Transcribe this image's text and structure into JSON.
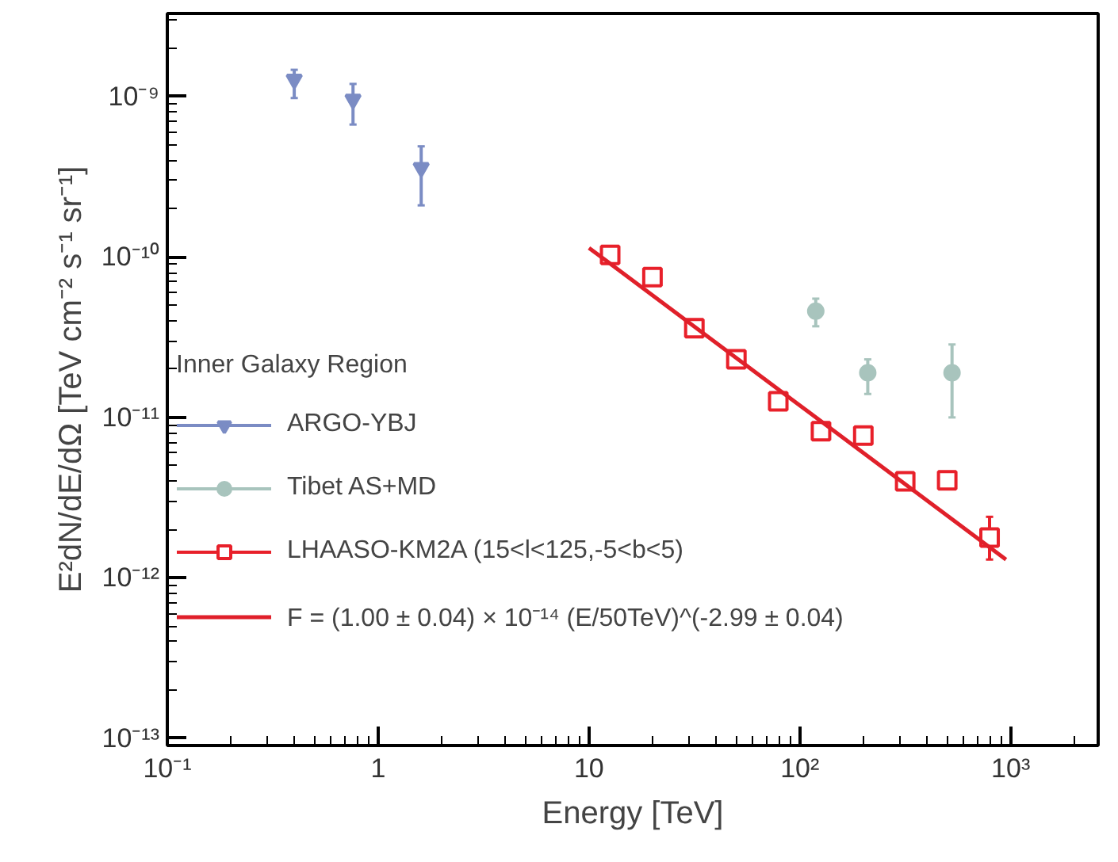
{
  "chart_data": {
    "type": "scatter",
    "xlabel": "Energy [TeV]",
    "ylabel": "E²dN/dE/dΩ [TeV cm⁻² s⁻¹ sr⁻¹]",
    "legend_title": "Inner Galaxy Region",
    "log": "xy",
    "grid": false,
    "legend": "left",
    "xlim": [
      0.1,
      2600
    ],
    "ylim": [
      9e-14,
      3.3e-09
    ],
    "xticks": [
      {
        "value": 0.1,
        "label": "10⁻¹"
      },
      1,
      10,
      {
        "value": 100,
        "label": "10²"
      },
      {
        "value": 1000,
        "label": "10³"
      }
    ],
    "yticks": [
      {
        "value": 1e-13,
        "label": "10⁻¹³"
      },
      {
        "value": 1e-12,
        "label": "10⁻¹²"
      },
      {
        "value": 1e-11,
        "label": "10⁻¹¹"
      },
      {
        "value": 1e-10,
        "label": "10⁻¹⁰"
      },
      {
        "value": 1e-09,
        "label": "10⁻⁹"
      }
    ],
    "series": [
      {
        "name": "ARGO-YBJ",
        "marker": "triangle",
        "color": "#7b8cc4",
        "x": [
          0.4,
          0.76,
          1.6
        ],
        "values": [
          1.28e-09,
          9.6e-10,
          3.6e-10
        ],
        "errors": [
          [
            9.8e-10,
            1.47e-09
          ],
          [
            6.7e-10,
            1.2e-09
          ],
          [
            2.1e-10,
            4.9e-10
          ]
        ]
      },
      {
        "name": "Tibet AS+MD",
        "marker": "circle",
        "color": "#a8c4bd",
        "x": [
          119,
          210,
          527
        ],
        "values": [
          4.6e-11,
          1.9e-11,
          1.9e-11
        ],
        "errors": [
          [
            3.7e-11,
            5.5e-11
          ],
          [
            1.4e-11,
            2.3e-11
          ],
          [
            1e-11,
            2.85e-11
          ]
        ]
      },
      {
        "name": "LHAASO-KM2A (15<l<125,-5<b<5)",
        "marker": "square",
        "color": "#e8202a",
        "x": [
          12.6,
          20,
          31.6,
          50,
          79,
          126,
          200,
          316,
          500,
          794
        ],
        "values": [
          1.03e-10,
          7.5e-11,
          3.6e-11,
          2.3e-11,
          1.26e-11,
          8.2e-12,
          7.7e-12,
          4e-12,
          4.05e-12,
          1.78e-12
        ],
        "errors": [
          null,
          null,
          null,
          null,
          null,
          null,
          null,
          null,
          null,
          [
            1.3e-12,
            2.4e-12
          ]
        ]
      },
      {
        "name": "F = (1.00 ± 0.04) × 10⁻¹⁴ (E/50TeV)^(-2.99 ± 0.04)",
        "type": "line",
        "marker": "none",
        "line_style": "solid",
        "color": "#e0202a",
        "x": [
          10,
          950
        ],
        "values": [
          1.14e-10,
          1.3e-12
        ]
      }
    ]
  }
}
